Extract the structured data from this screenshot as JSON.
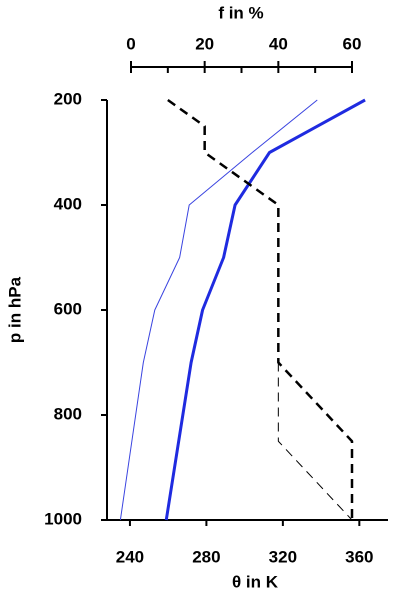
{
  "chart_data": {
    "type": "line",
    "xlabel": "θ in K",
    "ylabel": "p in hPa",
    "x2label": "f in %",
    "xlim": [
      228,
      375
    ],
    "xticks": [
      240,
      280,
      320,
      360
    ],
    "x2lim": [
      0,
      60
    ],
    "x2ticks": [
      0,
      20,
      40,
      60
    ],
    "x2minor": [
      10,
      30,
      50
    ],
    "ylim": [
      200,
      1000
    ],
    "yticks": [
      200,
      400,
      600,
      800,
      1000
    ],
    "y_inverted": true,
    "series": [
      {
        "axis": "x",
        "color": "#1f2be0",
        "width": 3,
        "dash": false,
        "x": [
          363,
          313,
          295,
          289,
          278,
          272,
          259
        ],
        "y": [
          200,
          300,
          400,
          500,
          600,
          700,
          1000
        ]
      },
      {
        "axis": "x",
        "color": "#3a44e0",
        "width": 1,
        "dash": false,
        "x": [
          338,
          304,
          271,
          266,
          253,
          247,
          235
        ],
        "y": [
          200,
          300,
          400,
          500,
          600,
          700,
          1000
        ]
      },
      {
        "axis": "x2",
        "color": "#000000",
        "width": 2.5,
        "dash": true,
        "x": [
          10,
          20,
          20,
          40,
          40,
          60,
          60
        ],
        "y": [
          200,
          250,
          300,
          400,
          700,
          850,
          1000
        ]
      },
      {
        "axis": "x2",
        "color": "#000000",
        "width": 1,
        "dash": true,
        "x": [
          40,
          40,
          60
        ],
        "y": [
          700,
          850,
          1000
        ]
      }
    ]
  }
}
